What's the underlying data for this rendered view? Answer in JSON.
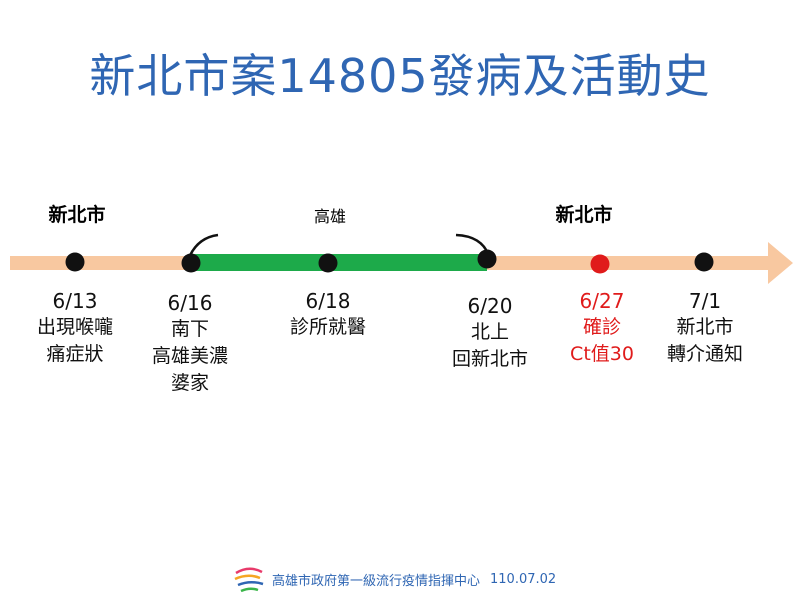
{
  "title": "新北市案14805發病及活動史",
  "regions": {
    "left": "新北市",
    "middle": "高雄",
    "right": "新北市"
  },
  "colors": {
    "title": "#2f66b3",
    "arrow": "#f8c8a0",
    "segment": "#1daa4a",
    "dot": "#111111",
    "highlight": "#e01b1b"
  },
  "events": [
    {
      "date": "6/13",
      "lines": [
        "出現喉嚨",
        "痛症狀"
      ]
    },
    {
      "date": "6/16",
      "lines": [
        "南下",
        "高雄美濃",
        "婆家"
      ]
    },
    {
      "date": "6/18",
      "lines": [
        "診所就醫"
      ]
    },
    {
      "date": "6/20",
      "lines": [
        "北上",
        "回新北市"
      ]
    },
    {
      "date": "6/27",
      "lines": [
        "確診",
        "Ct值30"
      ],
      "highlight": true
    },
    {
      "date": "7/1",
      "lines": [
        "新北市",
        "轉介通知"
      ]
    }
  ],
  "footer": {
    "logo_icon": "kaohsiung-city-logo-icon",
    "org": "高雄市政府第一級流行疫情指揮中心",
    "date": "110.07.02"
  }
}
